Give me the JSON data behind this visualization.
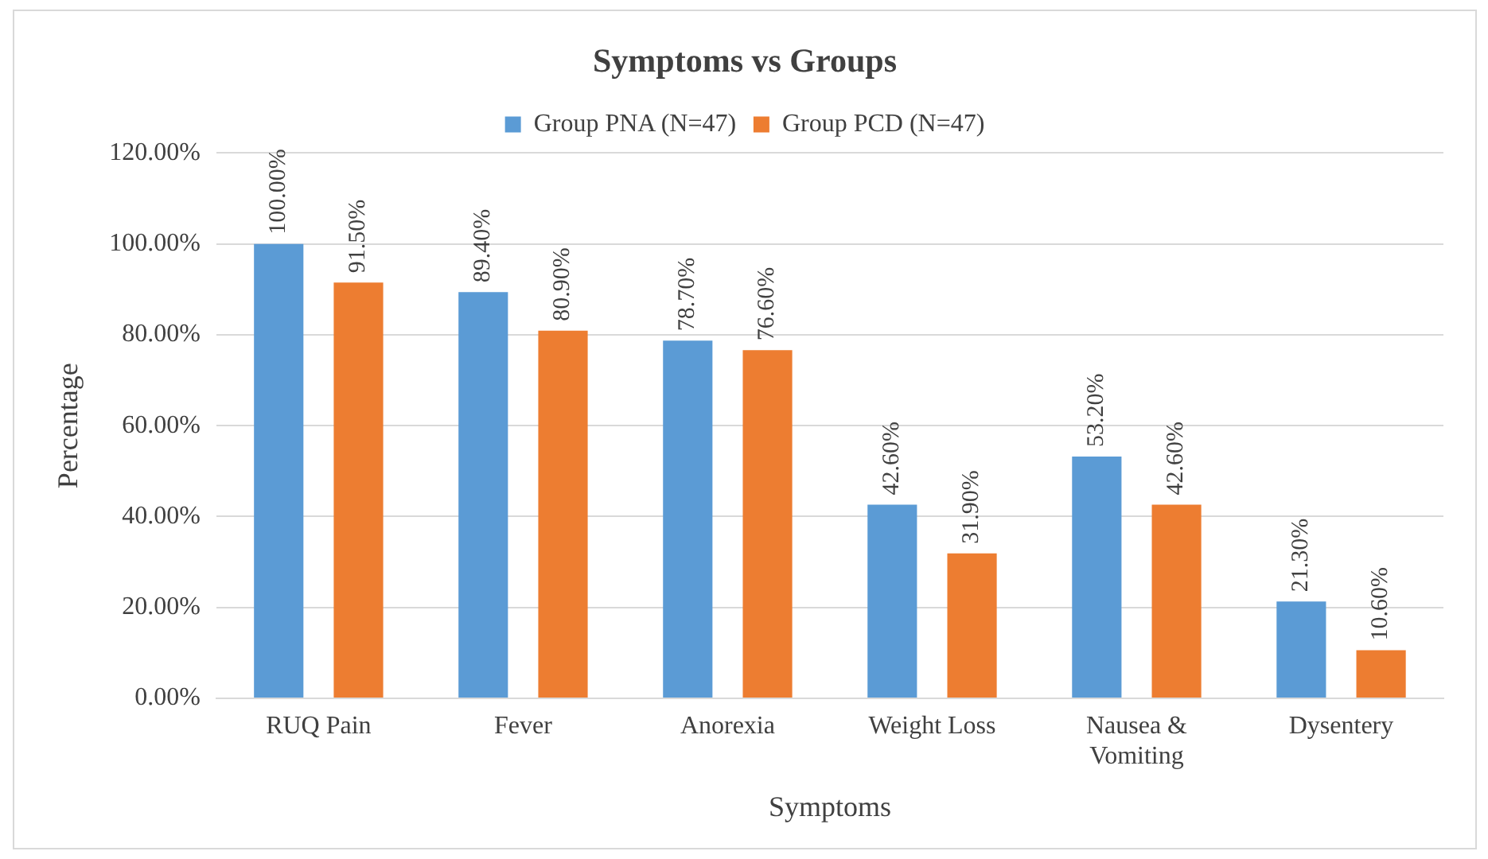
{
  "chart_data": {
    "type": "bar",
    "title": "Symptoms vs Groups",
    "xlabel": "Symptoms",
    "ylabel": "Percentage",
    "categories": [
      "RUQ Pain",
      "Fever",
      "Anorexia",
      "Weight Loss",
      "Nausea & Vomiting",
      "Dysentery"
    ],
    "series": [
      {
        "name": "Group PNA (N=47)",
        "color": "#5b9bd5",
        "values": [
          100,
          89.4,
          78.7,
          42.6,
          53.2,
          21.3
        ],
        "value_labels": [
          "100.00%",
          "89.40%",
          "78.70%",
          "42.60%",
          "53.20%",
          "21.30%"
        ]
      },
      {
        "name": "Group PCD (N=47)",
        "color": "#ed7d31",
        "values": [
          91.5,
          80.9,
          76.6,
          31.9,
          42.6,
          10.6
        ],
        "value_labels": [
          "91.50%",
          "80.90%",
          "76.60%",
          "31.90%",
          "42.60%",
          "10.60%"
        ]
      }
    ],
    "ylim": [
      0,
      120
    ],
    "yticks": [
      {
        "value": 0,
        "label": "0.00%"
      },
      {
        "value": 20,
        "label": "20.00%"
      },
      {
        "value": 40,
        "label": "40.00%"
      },
      {
        "value": 60,
        "label": "60.00%"
      },
      {
        "value": 80,
        "label": "80.00%"
      },
      {
        "value": 100,
        "label": "100.00%"
      },
      {
        "value": 120,
        "label": "120.00%"
      }
    ],
    "grid": "y",
    "legend": "top"
  }
}
